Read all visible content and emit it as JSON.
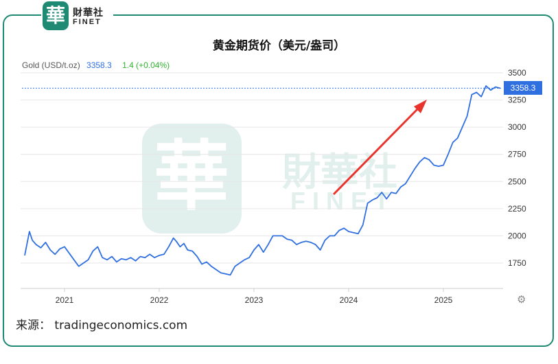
{
  "brand": {
    "mark": "華",
    "name_cn": "財華社",
    "name_en": "FINET"
  },
  "title": "黄金期货价（美元/盎司）",
  "header": {
    "instrument": "Gold (USD/t.oz)",
    "price": "3358.3",
    "change": "1.4 (+0.04%)"
  },
  "price_tag": "3358.3",
  "source": "来源： tradingeconomics.com",
  "icons": [
    "logo-mark-icon",
    "watermark-icon",
    "arrow-icon",
    "gear-icon"
  ],
  "colors": {
    "line": "#2f6fe0",
    "arrow": "#e8342c",
    "frame": "#1e8a74",
    "change": "#2fb52f"
  },
  "chart_data": {
    "type": "line",
    "title": "黄金期货价（美元/盎司）",
    "y_ticks": [
      "3500",
      "3250",
      "3000",
      "2750",
      "2500",
      "2250",
      "2000",
      "1750"
    ],
    "x_ticks": [
      "2021",
      "2022",
      "2023",
      "2024",
      "2025"
    ],
    "ylim": [
      1600,
      3500
    ],
    "xlim": [
      2020.58,
      2025.6
    ],
    "grid": "horizontal",
    "current_value": 3358.3,
    "series": [
      {
        "x": [
          2020.58,
          2020.63,
          2020.66,
          2020.7,
          2020.75,
          2020.8,
          2020.85,
          2020.9,
          2020.95,
          2021.0,
          2021.05,
          2021.1,
          2021.15,
          2021.2,
          2021.25,
          2021.3,
          2021.35,
          2021.4,
          2021.45,
          2021.5,
          2021.55,
          2021.6,
          2021.65,
          2021.7,
          2021.75,
          2021.8,
          2021.85,
          2021.9,
          2021.95,
          2022.0,
          2022.05,
          2022.1,
          2022.15,
          2022.18,
          2022.22,
          2022.26,
          2022.3,
          2022.35,
          2022.4,
          2022.45,
          2022.5,
          2022.55,
          2022.6,
          2022.65,
          2022.7,
          2022.75,
          2022.8,
          2022.85,
          2022.9,
          2022.95,
          2023.0,
          2023.05,
          2023.1,
          2023.15,
          2023.2,
          2023.25,
          2023.3,
          2023.35,
          2023.4,
          2023.45,
          2023.5,
          2023.55,
          2023.6,
          2023.65,
          2023.7,
          2023.75,
          2023.8,
          2023.85,
          2023.9,
          2023.95,
          2024.0,
          2024.05,
          2024.1,
          2024.15,
          2024.2,
          2024.25,
          2024.3,
          2024.35,
          2024.4,
          2024.45,
          2024.5,
          2024.55,
          2024.6,
          2024.65,
          2024.7,
          2024.75,
          2024.8,
          2024.85,
          2024.9,
          2024.95,
          2025.0,
          2025.05,
          2025.1,
          2025.15,
          2025.2,
          2025.25,
          2025.3,
          2025.35,
          2025.4,
          2025.45,
          2025.5,
          2025.55,
          2025.6
        ],
        "y": [
          1820,
          2040,
          1960,
          1920,
          1890,
          1940,
          1870,
          1830,
          1880,
          1900,
          1840,
          1780,
          1720,
          1750,
          1780,
          1860,
          1900,
          1800,
          1780,
          1810,
          1760,
          1790,
          1780,
          1800,
          1770,
          1810,
          1800,
          1830,
          1800,
          1820,
          1830,
          1900,
          1980,
          1950,
          1900,
          1930,
          1870,
          1860,
          1810,
          1740,
          1760,
          1720,
          1690,
          1660,
          1650,
          1640,
          1720,
          1750,
          1780,
          1800,
          1870,
          1920,
          1850,
          1920,
          2000,
          2000,
          2000,
          1970,
          1960,
          1920,
          1940,
          1950,
          1940,
          1920,
          1870,
          1960,
          2000,
          2000,
          2050,
          2070,
          2040,
          2030,
          2020,
          2100,
          2300,
          2330,
          2350,
          2400,
          2340,
          2400,
          2390,
          2450,
          2480,
          2550,
          2620,
          2680,
          2720,
          2700,
          2650,
          2640,
          2650,
          2750,
          2860,
          2900,
          3000,
          3100,
          3300,
          3320,
          3280,
          3380,
          3340,
          3370,
          3358
        ]
      }
    ]
  }
}
